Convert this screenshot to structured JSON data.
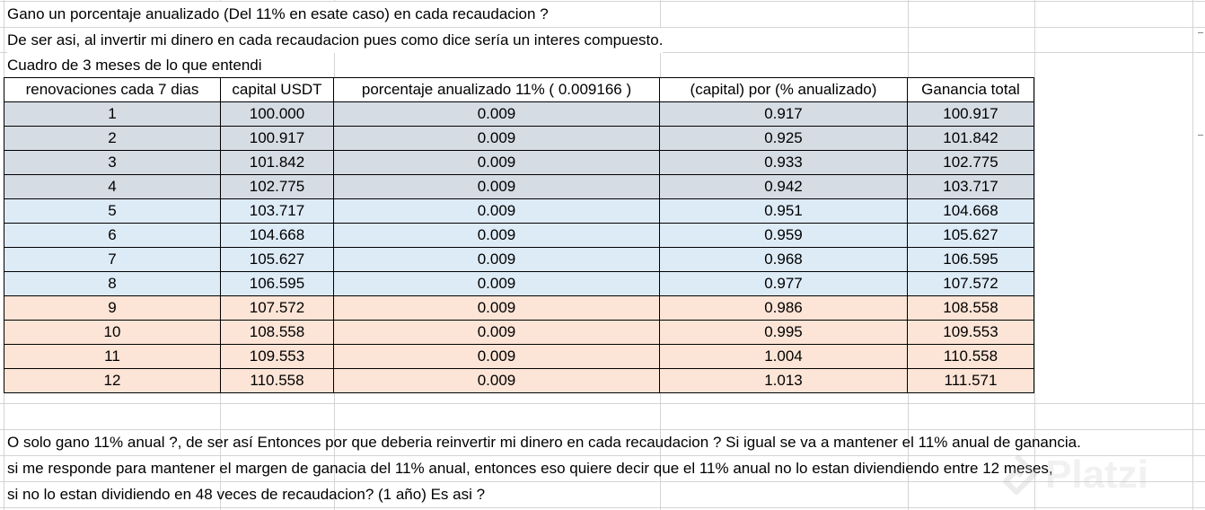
{
  "intro": {
    "line1": "Gano un porcentaje anualizado (Del 11% en esate caso) en cada recaudacion ?",
    "line2": "De ser asi, al invertir mi dinero en cada recaudacion pues como dice sería un interes compuesto.",
    "line3": "Cuadro de 3 meses de lo que entendi"
  },
  "table": {
    "headers": [
      "renovaciones cada 7 dias",
      "capital USDT",
      "porcentaje anualizado 11% ( 0.009166 )",
      "(capital) por (% anualizado)",
      "Ganancia total"
    ],
    "rows": [
      [
        "1",
        "100.000",
        "0.009",
        "0.917",
        "100.917"
      ],
      [
        "2",
        "100.917",
        "0.009",
        "0.925",
        "101.842"
      ],
      [
        "3",
        "101.842",
        "0.009",
        "0.933",
        "102.775"
      ],
      [
        "4",
        "102.775",
        "0.009",
        "0.942",
        "103.717"
      ],
      [
        "5",
        "103.717",
        "0.009",
        "0.951",
        "104.668"
      ],
      [
        "6",
        "104.668",
        "0.009",
        "0.959",
        "105.627"
      ],
      [
        "7",
        "105.627",
        "0.009",
        "0.968",
        "106.595"
      ],
      [
        "8",
        "106.595",
        "0.009",
        "0.977",
        "107.572"
      ],
      [
        "9",
        "107.572",
        "0.009",
        "0.986",
        "108.558"
      ],
      [
        "10",
        "108.558",
        "0.009",
        "0.995",
        "109.553"
      ],
      [
        "11",
        "109.553",
        "0.009",
        "1.004",
        "110.558"
      ],
      [
        "12",
        "110.558",
        "0.009",
        "1.013",
        "111.571"
      ]
    ],
    "group_colors": [
      "#d6dce4",
      "#ddebf7",
      "#fce4d6"
    ]
  },
  "outro": {
    "line1": "O solo gano 11% anual ?, de ser así Entonces por que deberia reinvertir mi dinero en cada recaudacion ? Si igual se va a mantener el 11% anual de ganancia.",
    "line2": "si me responde para mantener el margen de ganacia del 11% anual, entonces eso quiere decir que el 11% anual no lo estan diviendiendo entre 12 meses,",
    "line3": " si no lo estan dividiendo en 48 veces de recaudacion? (1 año) Es asi ?"
  },
  "watermark": {
    "text": "Platzi",
    "icon": "platzi-logo-icon"
  }
}
